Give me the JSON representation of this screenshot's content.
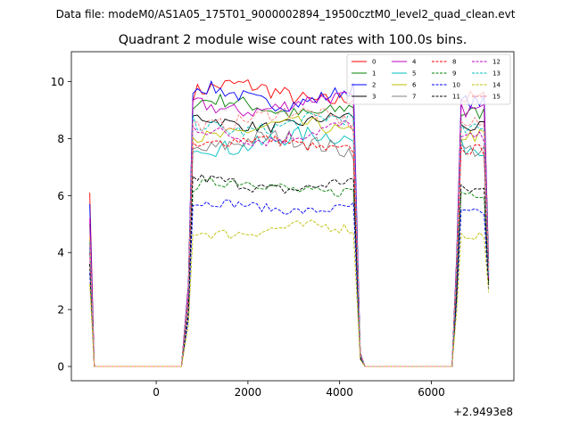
{
  "header": {
    "data_file": "Data file: modeM0/AS1A05_175T01_9000002894_19500cztM0_level2_quad_clean.evt"
  },
  "chart_data": {
    "type": "line",
    "title": "Quadrant 2 module wise count rates with 100.0s bins.",
    "xlabel": "",
    "ylabel": "",
    "xlim": [
      -1850,
      7800
    ],
    "ylim": [
      -0.5,
      11.05
    ],
    "x_offset_label": "+2.9493e8",
    "x_ticks": [
      0,
      2000,
      4000,
      6000
    ],
    "x_tick_labels": [
      "0",
      "2000",
      "4000",
      "6000"
    ],
    "y_ticks": [
      0,
      2,
      4,
      6,
      8,
      10
    ],
    "y_tick_labels": [
      "0",
      "2",
      "4",
      "6",
      "8",
      "10"
    ],
    "grid": false,
    "legend_placement": "top-right",
    "legend_columns": 4,
    "segment_1": {
      "drop_start": -1450,
      "drop_end": -1350,
      "zero_end": 600
    },
    "segment_2": {
      "rise_start": 600,
      "plateau_start": 800,
      "plateau_end": 4350,
      "drop_end": 4550,
      "zero_end": 6450
    },
    "segment_3": {
      "rise_start": 6450,
      "plateau_start": 6650,
      "plateau_end": 7150,
      "end": 7250
    },
    "bin_width": 100,
    "series": [
      {
        "name": "0",
        "color": "#ff0000",
        "dash": "solid",
        "start": 6.1,
        "level": 9.6,
        "noise": 0.3,
        "wave": 0.3,
        "end": 3.6
      },
      {
        "name": "1",
        "color": "#008000",
        "dash": "solid",
        "start": 5.0,
        "level": 9.1,
        "noise": 0.25,
        "wave": 0.25,
        "end": 3.4
      },
      {
        "name": "2",
        "color": "#0000ff",
        "dash": "solid",
        "start": 5.7,
        "level": 9.5,
        "noise": 0.25,
        "wave": 0.3,
        "end": 3.5
      },
      {
        "name": "3",
        "color": "#000000",
        "dash": "solid",
        "start": 4.4,
        "level": 8.6,
        "noise": 0.2,
        "wave": 0.2,
        "end": 3.2
      },
      {
        "name": "4",
        "color": "#bf00bf",
        "dash": "solid",
        "start": 5.2,
        "level": 9.2,
        "noise": 0.25,
        "wave": 0.25,
        "end": 3.3
      },
      {
        "name": "5",
        "color": "#00bfbf",
        "dash": "solid",
        "start": 4.1,
        "level": 7.9,
        "noise": 0.3,
        "wave": 0.25,
        "end": 3.0
      },
      {
        "name": "6",
        "color": "#bfbf00",
        "dash": "solid",
        "start": 4.5,
        "level": 8.3,
        "noise": 0.25,
        "wave": 0.25,
        "end": 3.1
      },
      {
        "name": "7",
        "color": "#808080",
        "dash": "solid",
        "start": 4.3,
        "level": 7.8,
        "noise": 0.3,
        "wave": 0.25,
        "end": 3.0
      },
      {
        "name": "8",
        "color": "#ff0000",
        "dash": "dashed",
        "start": 4.0,
        "level": 7.8,
        "noise": 0.2,
        "wave": 0.2,
        "end": 3.0
      },
      {
        "name": "9",
        "color": "#008000",
        "dash": "dashed",
        "start": 3.6,
        "level": 6.3,
        "noise": 0.2,
        "wave": 0.2,
        "end": 2.9
      },
      {
        "name": "10",
        "color": "#0000ff",
        "dash": "dashed",
        "start": 3.3,
        "level": 5.6,
        "noise": 0.15,
        "wave": 0.15,
        "end": 2.7
      },
      {
        "name": "11",
        "color": "#000000",
        "dash": "dashed",
        "start": 3.6,
        "level": 6.4,
        "noise": 0.2,
        "wave": 0.2,
        "end": 2.8
      },
      {
        "name": "12",
        "color": "#bf00bf",
        "dash": "dashed",
        "start": 4.2,
        "level": 8.2,
        "noise": 0.25,
        "wave": 0.25,
        "end": 3.1
      },
      {
        "name": "13",
        "color": "#00bfbf",
        "dash": "dashed",
        "start": 4.4,
        "level": 8.5,
        "noise": 0.25,
        "wave": 0.25,
        "end": 3.2
      },
      {
        "name": "14",
        "color": "#bfbf00",
        "dash": "dashed",
        "start": 2.9,
        "level": 4.8,
        "noise": 0.2,
        "wave": 0.15,
        "end": 2.6
      },
      {
        "name": "15",
        "color": "#ff8080",
        "dash": "dashed",
        "start": 4.6,
        "level": 8.7,
        "noise": 0.25,
        "wave": 0.25,
        "end": 3.3
      }
    ]
  }
}
